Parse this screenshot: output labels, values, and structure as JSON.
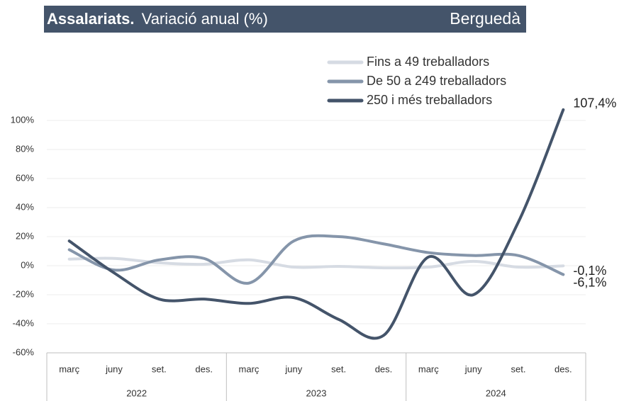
{
  "chart_data": {
    "type": "line",
    "title": "Assalariats.",
    "subtitle": "Variació anual (%)",
    "region": "Berguedà",
    "categories": [
      "març",
      "juny",
      "set.",
      "des.",
      "març",
      "juny",
      "set.",
      "des.",
      "març",
      "juny",
      "set.",
      "des."
    ],
    "groups": [
      "2022",
      "2023",
      "2024"
    ],
    "ylim": [
      -60,
      100
    ],
    "yticks": [
      {
        "value": -60,
        "label": "-60%"
      },
      {
        "value": -40,
        "label": "-40%"
      },
      {
        "value": -20,
        "label": "-20%"
      },
      {
        "value": 0,
        "label": "0%"
      },
      {
        "value": 20,
        "label": "20%"
      },
      {
        "value": 40,
        "label": "40%"
      },
      {
        "value": 60,
        "label": "60%"
      },
      {
        "value": 80,
        "label": "80%"
      },
      {
        "value": 100,
        "label": "100%"
      }
    ],
    "grid": true,
    "legend": "top",
    "series": [
      {
        "name": "Fins a 49 treballadors",
        "color": "#d6dbe3",
        "values": [
          4.5,
          5,
          2,
          1,
          4,
          -1,
          -0.5,
          -1.5,
          -1,
          3,
          -1,
          -0.1
        ],
        "value_labels": [
          null,
          null,
          null,
          null,
          null,
          null,
          null,
          null,
          null,
          null,
          null,
          "-0,1%"
        ]
      },
      {
        "name": "De 50 a 249 treballadors",
        "color": "#8595aa",
        "values": [
          11,
          -3,
          4,
          5,
          -12,
          17,
          20,
          15,
          9,
          7,
          7,
          -6.1
        ],
        "value_labels": [
          null,
          null,
          null,
          null,
          null,
          null,
          null,
          null,
          null,
          null,
          null,
          "-6,1%"
        ]
      },
      {
        "name": "250 i més treballadors",
        "color": "#44546a",
        "values": [
          17,
          -5,
          -23,
          -23,
          -26,
          -22,
          -37,
          -48,
          6,
          -20,
          30,
          107.4
        ],
        "value_labels": [
          null,
          null,
          null,
          null,
          null,
          null,
          null,
          null,
          null,
          null,
          null,
          "107,4%"
        ]
      }
    ]
  }
}
